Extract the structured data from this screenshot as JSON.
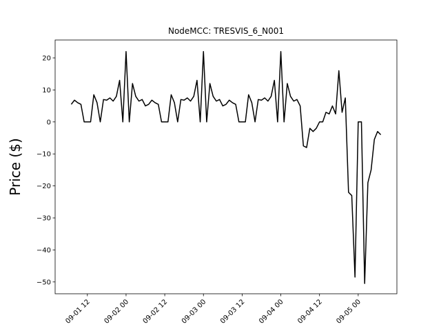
{
  "chart_data": {
    "type": "line",
    "title": "NodeMCC: TRESVIS_6_N001",
    "ylabel": "Price ($)",
    "color": "#000000",
    "x": [
      "09-01 07",
      "09-01 08",
      "09-01 09",
      "09-01 10",
      "09-01 11",
      "09-01 12",
      "09-01 13",
      "09-01 14",
      "09-01 15",
      "09-01 16",
      "09-01 17",
      "09-01 18",
      "09-01 19",
      "09-01 20",
      "09-01 21",
      "09-01 22",
      "09-01 23",
      "09-02 00",
      "09-02 01",
      "09-02 02",
      "09-02 03",
      "09-02 04",
      "09-02 05",
      "09-02 06",
      "09-02 07",
      "09-02 08",
      "09-02 09",
      "09-02 10",
      "09-02 11",
      "09-02 12",
      "09-02 13",
      "09-02 14",
      "09-02 15",
      "09-02 16",
      "09-02 17",
      "09-02 18",
      "09-02 19",
      "09-02 20",
      "09-02 21",
      "09-02 22",
      "09-02 23",
      "09-03 00",
      "09-03 01",
      "09-03 02",
      "09-03 03",
      "09-03 04",
      "09-03 05",
      "09-03 06",
      "09-03 07",
      "09-03 08",
      "09-03 09",
      "09-03 10",
      "09-03 11",
      "09-03 12",
      "09-03 13",
      "09-03 14",
      "09-03 15",
      "09-03 16",
      "09-03 17",
      "09-03 18",
      "09-03 19",
      "09-03 20",
      "09-03 21",
      "09-03 22",
      "09-03 23",
      "09-04 00",
      "09-04 01",
      "09-04 02",
      "09-04 03",
      "09-04 04",
      "09-04 05",
      "09-04 06",
      "09-04 07",
      "09-04 08",
      "09-04 09",
      "09-04 10",
      "09-04 11",
      "09-04 12",
      "09-04 13",
      "09-04 14",
      "09-04 15",
      "09-04 16",
      "09-04 17",
      "09-04 18",
      "09-04 19",
      "09-04 20",
      "09-04 21",
      "09-04 22",
      "09-04 23",
      "09-05 00",
      "09-05 01",
      "09-05 02",
      "09-05 03",
      "09-05 04",
      "09-05 05",
      "09-05 06",
      "09-05 07"
    ],
    "values": [
      5.5,
      6.8,
      6,
      5.5,
      0,
      0,
      0,
      8.5,
      6,
      0,
      7,
      6.8,
      7.5,
      6.5,
      8,
      13,
      0,
      22,
      0,
      12,
      8,
      6.5,
      7,
      5,
      5.5,
      6.8,
      6,
      5.5,
      0,
      0,
      0,
      8.5,
      6,
      0,
      7,
      6.8,
      7.5,
      6.5,
      8,
      13,
      0,
      22,
      0,
      12,
      8,
      6.5,
      7,
      5,
      5.5,
      6.8,
      6,
      5.5,
      0,
      0,
      0,
      8.5,
      6,
      0,
      7,
      6.8,
      7.5,
      6.5,
      8,
      13,
      0,
      22,
      0,
      12,
      8,
      6.5,
      7,
      5,
      -7.5,
      -8,
      -2,
      -3,
      -2,
      0,
      0,
      3,
      2.5,
      5,
      2.5,
      16,
      3,
      7.5,
      -22,
      -23,
      -48.5,
      0,
      0,
      -50.5,
      -19,
      -15,
      -5.5,
      -3,
      -4
    ],
    "xlim": [
      "09-01 02",
      "09-05 12"
    ],
    "xticks": [
      "09-01 12",
      "09-02 00",
      "09-02 12",
      "09-03 00",
      "09-03 12",
      "09-04 00",
      "09-04 12",
      "09-05 00"
    ],
    "ylim": [
      -53.7,
      25.6
    ],
    "yticks": [
      {
        "value": -50,
        "label": "−50"
      },
      {
        "value": -40,
        "label": "−40"
      },
      {
        "value": -30,
        "label": "−30"
      },
      {
        "value": -20,
        "label": "−20"
      },
      {
        "value": -10,
        "label": "−10"
      },
      0,
      10,
      20
    ],
    "grid": false
  }
}
